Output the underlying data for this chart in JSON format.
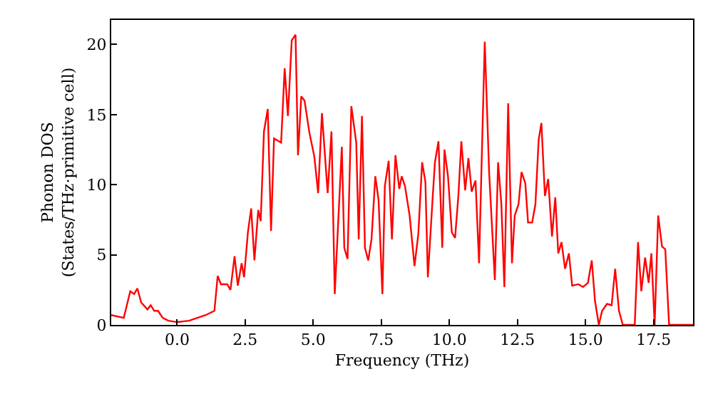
{
  "chart_data": {
    "type": "line",
    "xlabel": "Frequency (THz)",
    "ylabel": "Phonon DOS\n(States/THz·primitive cell)",
    "xlim": [
      -2.42,
      18.95
    ],
    "ylim": [
      0,
      21.75
    ],
    "xticks": [
      {
        "value": 0,
        "label": "0.0"
      },
      {
        "value": 2.5,
        "label": "2.5"
      },
      {
        "value": 5,
        "label": "5.0"
      },
      {
        "value": 7.5,
        "label": "7.5"
      },
      {
        "value": 10,
        "label": "10.0"
      },
      {
        "value": 12.5,
        "label": "12.5"
      },
      {
        "value": 15,
        "label": "15.0"
      },
      {
        "value": 17.5,
        "label": "17.5"
      }
    ],
    "yticks": [
      0,
      5,
      10,
      15,
      20
    ],
    "marker": "none",
    "line_style": "solid",
    "x": [
      -2.42,
      -1.96,
      -1.72,
      -1.58,
      -1.46,
      -1.32,
      -1.09,
      -0.97,
      -0.84,
      -0.7,
      -0.53,
      -0.32,
      0.0,
      0.44,
      1.05,
      1.37,
      1.49,
      1.61,
      1.84,
      1.96,
      2.11,
      2.23,
      2.37,
      2.46,
      2.6,
      2.72,
      2.84,
      2.98,
      3.07,
      3.19,
      3.33,
      3.45,
      3.56,
      3.82,
      3.95,
      4.07,
      4.21,
      4.35,
      4.44,
      4.56,
      4.68,
      4.86,
      5.04,
      5.18,
      5.32,
      5.53,
      5.67,
      5.79,
      6.05,
      6.14,
      6.26,
      6.4,
      6.58,
      6.67,
      6.79,
      6.9,
      7.02,
      7.14,
      7.28,
      7.4,
      7.54,
      7.63,
      7.77,
      7.89,
      8.02,
      8.16,
      8.25,
      8.37,
      8.54,
      8.72,
      8.86,
      9.0,
      9.12,
      9.21,
      9.39,
      9.47,
      9.6,
      9.74,
      9.82,
      9.95,
      10.09,
      10.21,
      10.33,
      10.44,
      10.58,
      10.7,
      10.82,
      10.96,
      11.09,
      11.3,
      11.46,
      11.67,
      11.79,
      11.91,
      12.02,
      12.16,
      12.3,
      12.4,
      12.54,
      12.65,
      12.79,
      12.89,
      13.04,
      13.16,
      13.28,
      13.38,
      13.51,
      13.63,
      13.77,
      13.89,
      14.0,
      14.12,
      14.25,
      14.39,
      14.51,
      14.74,
      14.91,
      15.09,
      15.23,
      15.35,
      15.49,
      15.61,
      15.79,
      15.96,
      16.09,
      16.23,
      16.37,
      16.81,
      16.93,
      17.05,
      17.19,
      17.32,
      17.42,
      17.54,
      17.67,
      17.81,
      17.93,
      18.07,
      18.95
    ],
    "series": [
      {
        "color": "#ff0000",
        "values": [
          0.7,
          0.5,
          2.4,
          2.2,
          2.6,
          1.6,
          1.1,
          1.4,
          1.0,
          1.0,
          0.5,
          0.3,
          0.2,
          0.3,
          0.7,
          1.0,
          3.5,
          2.9,
          2.9,
          2.5,
          4.9,
          2.8,
          4.4,
          3.4,
          6.6,
          8.3,
          4.6,
          8.2,
          7.4,
          13.8,
          15.4,
          6.7,
          13.3,
          13.0,
          18.3,
          14.9,
          20.3,
          20.7,
          12.1,
          16.3,
          16.0,
          13.7,
          12.0,
          9.4,
          15.1,
          9.4,
          13.8,
          2.2,
          12.7,
          5.5,
          4.7,
          15.6,
          13.0,
          6.1,
          14.9,
          5.5,
          4.6,
          6.1,
          10.6,
          8.9,
          2.2,
          9.9,
          11.7,
          6.1,
          12.1,
          9.7,
          10.6,
          9.9,
          7.8,
          4.2,
          6.5,
          11.6,
          10.2,
          3.4,
          9.2,
          11.6,
          13.1,
          5.5,
          12.5,
          10.6,
          6.6,
          6.2,
          9.2,
          13.1,
          9.6,
          11.9,
          9.5,
          10.3,
          4.4,
          20.2,
          10.9,
          3.2,
          11.6,
          8.6,
          2.7,
          15.8,
          4.4,
          7.8,
          8.6,
          10.9,
          10.1,
          7.3,
          7.3,
          8.6,
          13.2,
          14.4,
          9.2,
          10.4,
          6.3,
          9.1,
          5.1,
          5.9,
          4.0,
          5.1,
          2.8,
          2.9,
          2.7,
          3.0,
          4.6,
          1.7,
          0.0,
          1.0,
          1.5,
          1.4,
          4.0,
          1.0,
          0.0,
          0.0,
          5.9,
          2.4,
          4.8,
          3.0,
          5.1,
          0.0,
          7.8,
          5.6,
          5.4,
          0.0,
          0.0
        ]
      }
    ]
  }
}
